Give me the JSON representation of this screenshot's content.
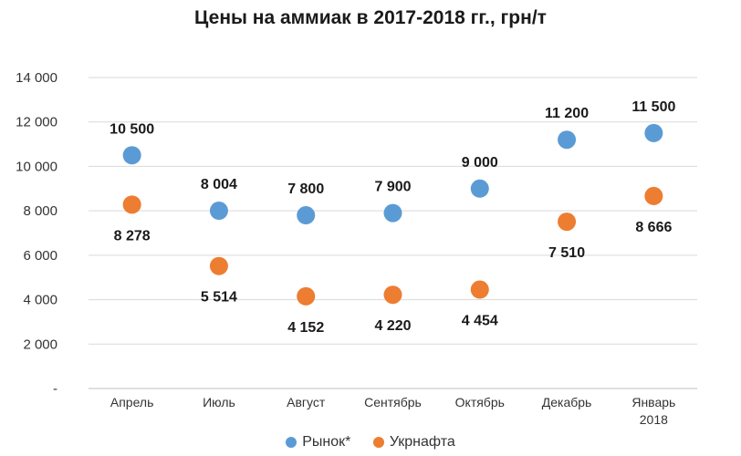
{
  "chart_data": {
    "type": "scatter",
    "title": "Цены на аммиак в 2017-2018 гг., грн/т",
    "categories": [
      [
        "Апрель"
      ],
      [
        "Июль"
      ],
      [
        "Август"
      ],
      [
        "Сентябрь"
      ],
      [
        "Октябрь"
      ],
      [
        "Декабрь"
      ],
      [
        "Январь",
        "2018"
      ]
    ],
    "ylim": [
      0,
      14000
    ],
    "yticks": [
      {
        "value": 0,
        "label": "-"
      },
      {
        "value": 2000,
        "label": "2 000"
      },
      {
        "value": 4000,
        "label": "4 000"
      },
      {
        "value": 6000,
        "label": "6 000"
      },
      {
        "value": 8000,
        "label": "8 000"
      },
      {
        "value": 10000,
        "label": "10 000"
      },
      {
        "value": 12000,
        "label": "12 000"
      },
      {
        "value": 14000,
        "label": "14 000"
      }
    ],
    "grid": true,
    "legend_position": "bottom",
    "series": [
      {
        "name": "Рынок*",
        "color": "#5b9bd5",
        "values": [
          10500,
          8004,
          7800,
          7900,
          9000,
          11200,
          11500
        ],
        "labels": [
          "10 500",
          "8 004",
          "7 800",
          "7 900",
          "9 000",
          "11 200",
          "11 500"
        ],
        "label_side": "above"
      },
      {
        "name": "Укрнафта",
        "color": "#ed7d31",
        "values": [
          8278,
          5514,
          4152,
          4220,
          4454,
          7510,
          8666
        ],
        "labels": [
          "8 278",
          "5 514",
          "4 152",
          "4 220",
          "4 454",
          "7 510",
          "8 666"
        ],
        "label_side": "below"
      }
    ]
  }
}
